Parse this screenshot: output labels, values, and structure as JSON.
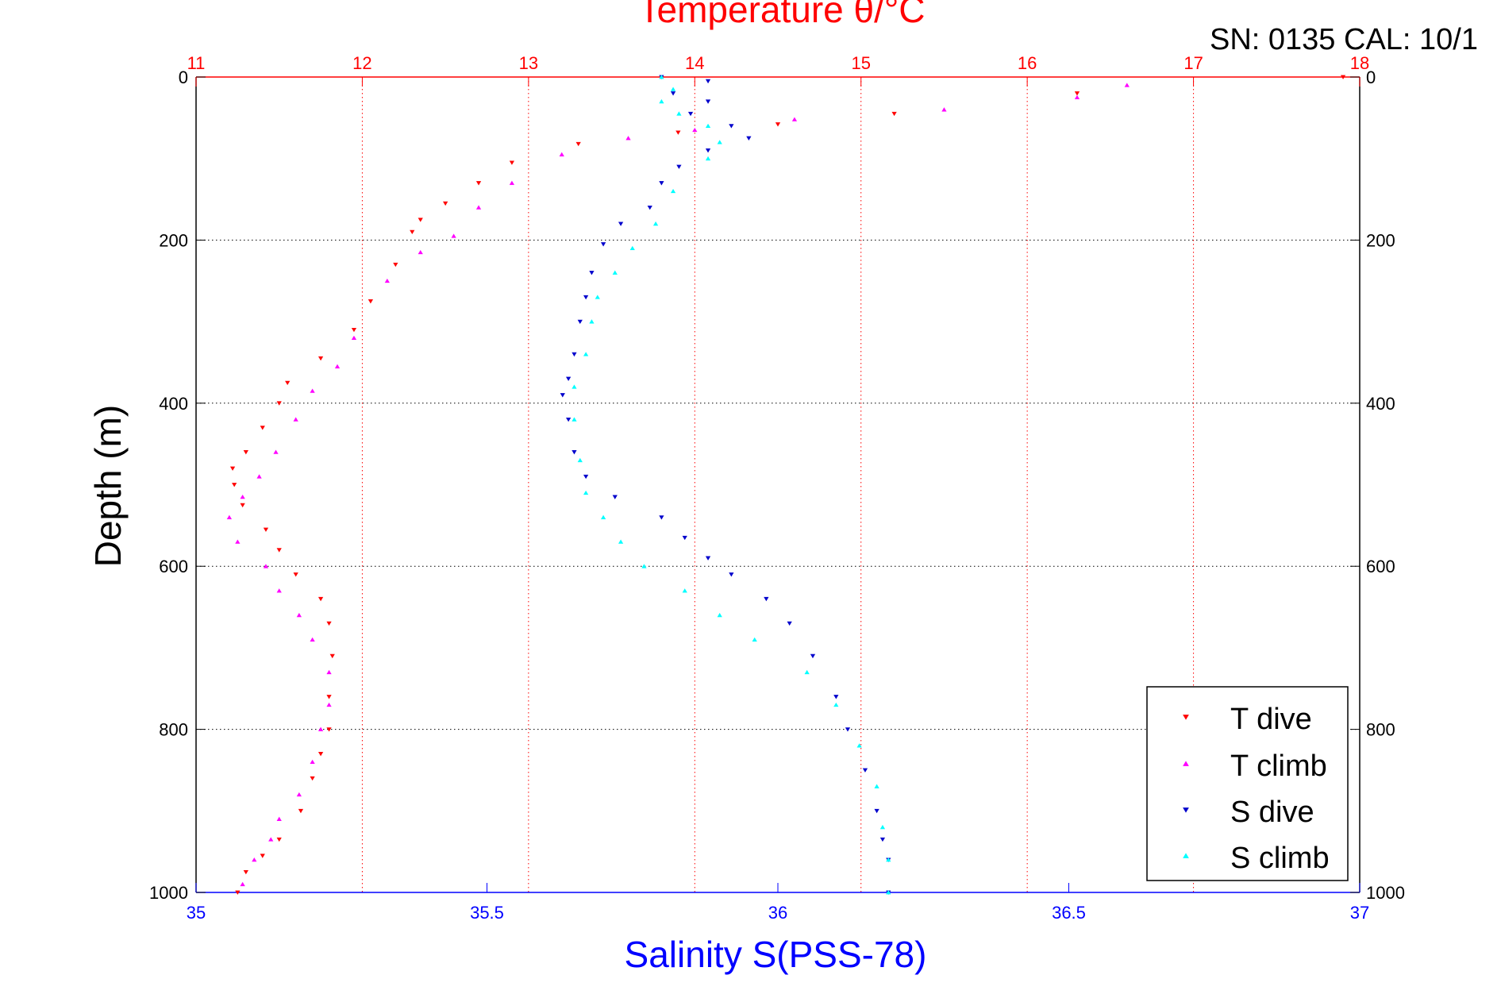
{
  "chart_data": {
    "type": "scatter",
    "top_title": "Temperature θ/°C",
    "header_text": "SN: 0135  CAL: 10/1",
    "ylabel": "Depth (m)",
    "xlabel": "Salinity S(PSS-78)",
    "y_axis": {
      "range": [
        0,
        1000
      ],
      "reversed": true,
      "ticks": [
        "0",
        "200",
        "400",
        "600",
        "800",
        "1000"
      ]
    },
    "temp_axis": {
      "range": [
        11,
        18
      ],
      "ticks": [
        "11",
        "12",
        "13",
        "14",
        "15",
        "16",
        "17",
        "18"
      ],
      "grid": true,
      "color": "#ff0000"
    },
    "sal_axis": {
      "range": [
        35,
        37
      ],
      "ticks": [
        "35",
        "35.5",
        "36",
        "36.5",
        "37"
      ],
      "color": "#0000ff"
    },
    "grid": true,
    "legend_position": "bottom-right",
    "colors": {
      "t_dive": "#ff0000",
      "t_climb": "#ff00ff",
      "s_dive": "#0000cc",
      "s_climb": "#00ffff"
    },
    "series": [
      {
        "name": "T dive",
        "color": "#ff0000",
        "marker": "triangle-down",
        "axis": "temperature",
        "points": [
          [
            17.9,
            0
          ],
          [
            16.3,
            20
          ],
          [
            15.2,
            45
          ],
          [
            14.5,
            58
          ],
          [
            13.9,
            68
          ],
          [
            13.3,
            82
          ],
          [
            12.9,
            105
          ],
          [
            12.7,
            130
          ],
          [
            12.5,
            155
          ],
          [
            12.35,
            175
          ],
          [
            12.3,
            190
          ],
          [
            12.2,
            230
          ],
          [
            12.05,
            275
          ],
          [
            11.95,
            310
          ],
          [
            11.75,
            345
          ],
          [
            11.55,
            375
          ],
          [
            11.5,
            400
          ],
          [
            11.4,
            430
          ],
          [
            11.3,
            460
          ],
          [
            11.22,
            480
          ],
          [
            11.23,
            500
          ],
          [
            11.28,
            525
          ],
          [
            11.42,
            555
          ],
          [
            11.5,
            580
          ],
          [
            11.6,
            610
          ],
          [
            11.75,
            640
          ],
          [
            11.8,
            670
          ],
          [
            11.82,
            710
          ],
          [
            11.8,
            760
          ],
          [
            11.8,
            800
          ],
          [
            11.75,
            830
          ],
          [
            11.7,
            860
          ],
          [
            11.63,
            900
          ],
          [
            11.5,
            935
          ],
          [
            11.4,
            955
          ],
          [
            11.3,
            975
          ],
          [
            11.25,
            1000
          ]
        ]
      },
      {
        "name": "T climb",
        "color": "#ff00ff",
        "marker": "triangle-up",
        "axis": "temperature",
        "points": [
          [
            16.6,
            10
          ],
          [
            16.3,
            25
          ],
          [
            15.5,
            40
          ],
          [
            14.6,
            52
          ],
          [
            14.0,
            65
          ],
          [
            13.6,
            75
          ],
          [
            13.2,
            95
          ],
          [
            12.9,
            130
          ],
          [
            12.7,
            160
          ],
          [
            12.55,
            195
          ],
          [
            12.35,
            215
          ],
          [
            12.15,
            250
          ],
          [
            11.95,
            320
          ],
          [
            11.85,
            355
          ],
          [
            11.7,
            385
          ],
          [
            11.6,
            420
          ],
          [
            11.48,
            460
          ],
          [
            11.38,
            490
          ],
          [
            11.28,
            515
          ],
          [
            11.2,
            540
          ],
          [
            11.25,
            570
          ],
          [
            11.42,
            600
          ],
          [
            11.5,
            630
          ],
          [
            11.62,
            660
          ],
          [
            11.7,
            690
          ],
          [
            11.8,
            730
          ],
          [
            11.8,
            770
          ],
          [
            11.75,
            800
          ],
          [
            11.7,
            840
          ],
          [
            11.62,
            880
          ],
          [
            11.5,
            910
          ],
          [
            11.45,
            935
          ],
          [
            11.35,
            960
          ],
          [
            11.28,
            990
          ]
        ]
      },
      {
        "name": "S dive",
        "color": "#0000cc",
        "marker": "triangle-down",
        "axis": "salinity",
        "points": [
          [
            35.8,
            0
          ],
          [
            35.88,
            5
          ],
          [
            35.82,
            20
          ],
          [
            35.88,
            30
          ],
          [
            35.85,
            45
          ],
          [
            35.92,
            60
          ],
          [
            35.95,
            75
          ],
          [
            35.88,
            90
          ],
          [
            35.83,
            110
          ],
          [
            35.8,
            130
          ],
          [
            35.78,
            160
          ],
          [
            35.73,
            180
          ],
          [
            35.7,
            205
          ],
          [
            35.68,
            240
          ],
          [
            35.67,
            270
          ],
          [
            35.66,
            300
          ],
          [
            35.65,
            340
          ],
          [
            35.64,
            370
          ],
          [
            35.63,
            390
          ],
          [
            35.64,
            420
          ],
          [
            35.65,
            460
          ],
          [
            35.67,
            490
          ],
          [
            35.72,
            515
          ],
          [
            35.8,
            540
          ],
          [
            35.84,
            565
          ],
          [
            35.88,
            590
          ],
          [
            35.92,
            610
          ],
          [
            35.98,
            640
          ],
          [
            36.02,
            670
          ],
          [
            36.06,
            710
          ],
          [
            36.1,
            760
          ],
          [
            36.12,
            800
          ],
          [
            36.15,
            850
          ],
          [
            36.17,
            900
          ],
          [
            36.18,
            935
          ],
          [
            36.19,
            960
          ],
          [
            36.19,
            1000
          ]
        ]
      },
      {
        "name": "S climb",
        "color": "#00ffff",
        "marker": "triangle-up",
        "axis": "salinity",
        "points": [
          [
            35.8,
            0
          ],
          [
            35.82,
            15
          ],
          [
            35.8,
            30
          ],
          [
            35.83,
            45
          ],
          [
            35.88,
            60
          ],
          [
            35.9,
            80
          ],
          [
            35.88,
            100
          ],
          [
            35.82,
            140
          ],
          [
            35.79,
            180
          ],
          [
            35.75,
            210
          ],
          [
            35.72,
            240
          ],
          [
            35.69,
            270
          ],
          [
            35.68,
            300
          ],
          [
            35.67,
            340
          ],
          [
            35.65,
            380
          ],
          [
            35.65,
            420
          ],
          [
            35.66,
            470
          ],
          [
            35.67,
            510
          ],
          [
            35.7,
            540
          ],
          [
            35.73,
            570
          ],
          [
            35.77,
            600
          ],
          [
            35.84,
            630
          ],
          [
            35.9,
            660
          ],
          [
            35.96,
            690
          ],
          [
            36.05,
            730
          ],
          [
            36.1,
            770
          ],
          [
            36.14,
            820
          ],
          [
            36.17,
            870
          ],
          [
            36.18,
            920
          ],
          [
            36.19,
            960
          ],
          [
            36.19,
            1000
          ]
        ]
      }
    ]
  }
}
